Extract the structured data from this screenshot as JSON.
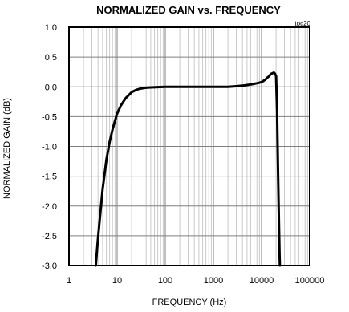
{
  "chart_data": {
    "type": "line",
    "title": "NORMALIZED GAIN vs. FREQUENCY",
    "tag": "toc20",
    "xlabel": "FREQUENCY (Hz)",
    "ylabel": "NORMALIZED GAIN (dB)",
    "xscale": "log",
    "xlim": [
      1,
      100000
    ],
    "ylim": [
      -3.0,
      1.0
    ],
    "xticks": [
      1,
      10,
      100,
      1000,
      10000,
      100000
    ],
    "xtick_labels": [
      "1",
      "10",
      "100",
      "1000",
      "10000",
      "100000"
    ],
    "yticks": [
      1.0,
      0.5,
      0.0,
      -0.5,
      -1.0,
      -1.5,
      -2.0,
      -2.5,
      -3.0
    ],
    "ytick_labels": [
      "1.0",
      "0.5",
      "0.0",
      "-0.5",
      "-1.0",
      "-1.5",
      "-2.0",
      "-2.5",
      "-3.0"
    ],
    "grid": true,
    "legend": false,
    "line_color": "#000000",
    "series": [
      {
        "x": [
          3.6,
          4.0,
          4.5,
          5.0,
          6.0,
          7.0,
          8.0,
          9.0,
          10,
          12,
          15,
          20,
          25,
          30,
          40,
          50,
          70,
          100,
          200,
          500,
          1000,
          2000,
          3000,
          4000,
          5000,
          6000,
          7000,
          8000,
          9000,
          10000,
          11000,
          12000,
          13000,
          14000,
          15000,
          16000,
          17000,
          18000,
          19000,
          20000,
          21000,
          22000,
          23000,
          23600,
          24000
        ],
        "y": [
          -3.0,
          -2.55,
          -2.1,
          -1.72,
          -1.22,
          -0.92,
          -0.72,
          -0.57,
          -0.45,
          -0.31,
          -0.19,
          -0.09,
          -0.05,
          -0.03,
          -0.015,
          -0.01,
          -0.005,
          0.0,
          0.0,
          0.0,
          0.0,
          0.0,
          0.01,
          0.02,
          0.03,
          0.04,
          0.05,
          0.06,
          0.07,
          0.08,
          0.1,
          0.12,
          0.15,
          0.17,
          0.2,
          0.22,
          0.23,
          0.24,
          0.22,
          0.18,
          -0.4,
          -1.4,
          -2.3,
          -2.8,
          -3.0
        ]
      }
    ]
  }
}
